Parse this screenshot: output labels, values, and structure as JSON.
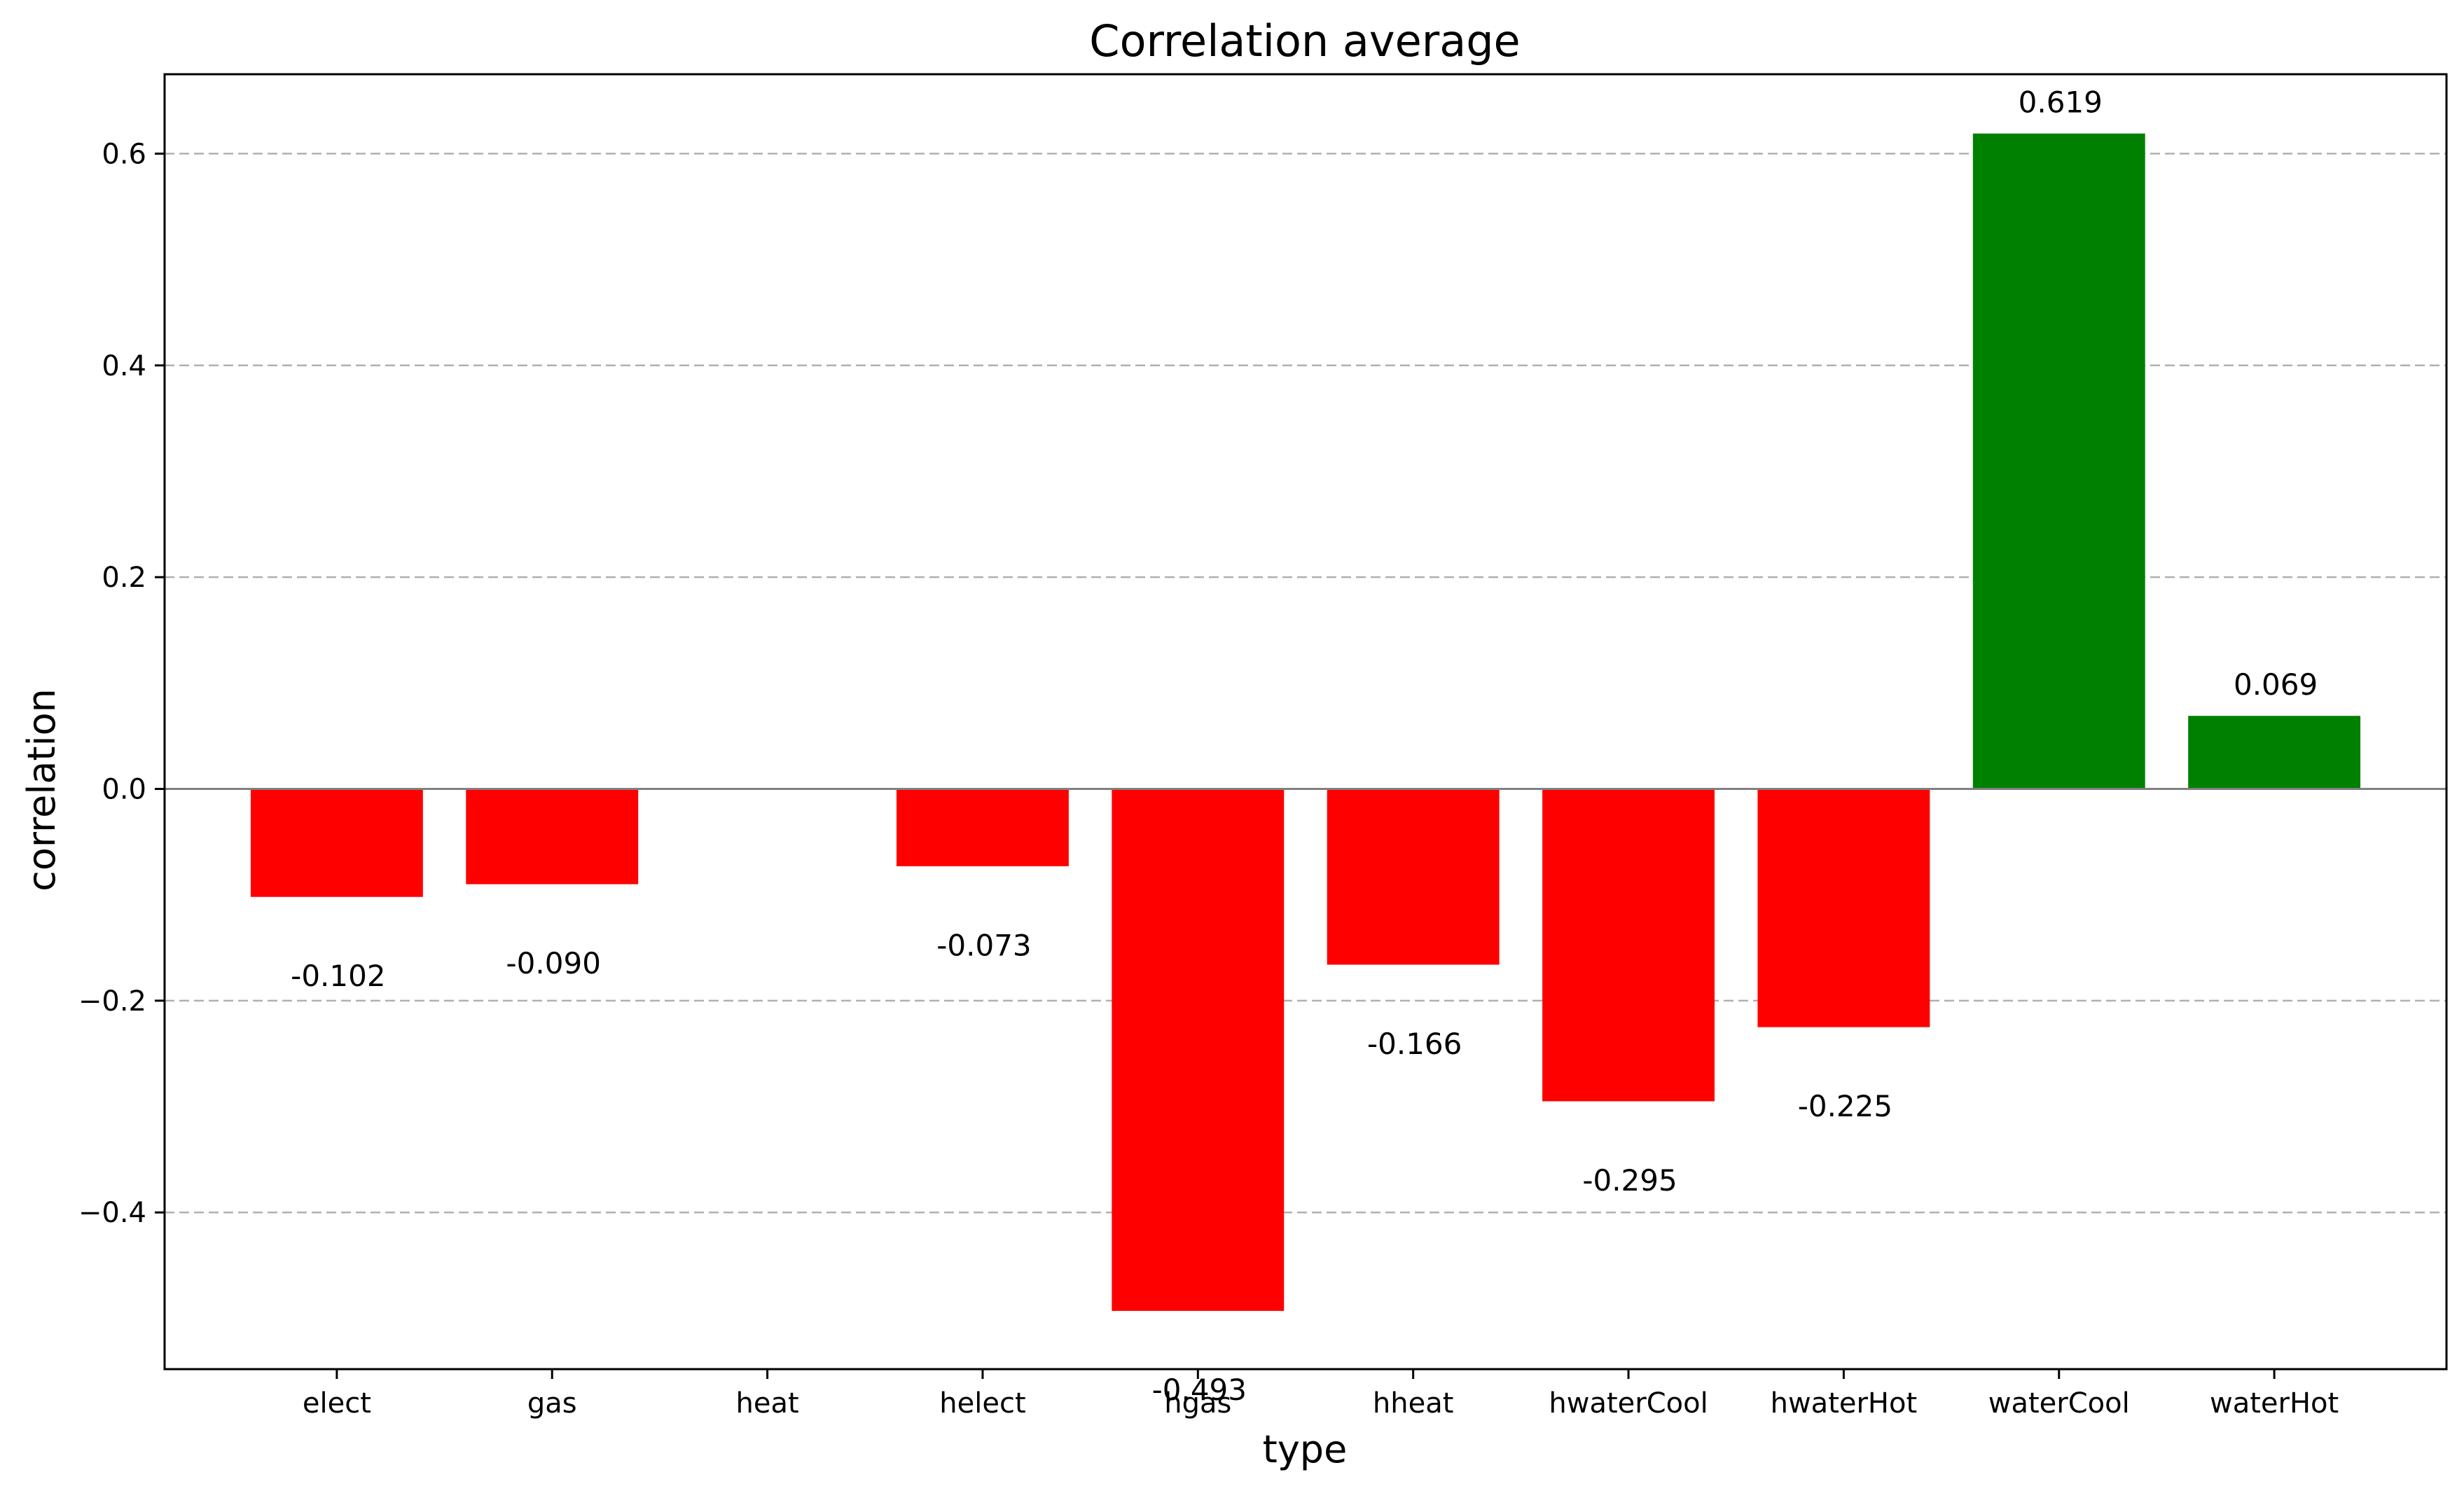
{
  "chart_data": {
    "type": "bar",
    "title": "Correlation average",
    "xlabel": "type",
    "ylabel": "correlation",
    "categories": [
      "elect",
      "gas",
      "heat",
      "helect",
      "hgas",
      "hheat",
      "hwaterCool",
      "hwaterHot",
      "waterCool",
      "waterHot"
    ],
    "values": [
      -0.102,
      -0.09,
      0.0,
      -0.073,
      -0.493,
      -0.166,
      -0.295,
      -0.225,
      0.619,
      0.069
    ],
    "data_labels": [
      "-0.102",
      "-0.090",
      "",
      "-0.073",
      "-0.493",
      "-0.166",
      "-0.295",
      "-0.225",
      "0.619",
      "0.069"
    ],
    "ylim": [
      -0.548,
      0.675
    ],
    "yticks": [
      -0.4,
      -0.2,
      0.0,
      0.2,
      0.4,
      0.6
    ],
    "ytick_labels": [
      "−0.4",
      "−0.2",
      "0.0",
      "0.2",
      "0.4",
      "0.6"
    ],
    "grid": "y-dashed",
    "colors": {
      "positive": "#008000",
      "negative": "#ff0000",
      "grid": "#b0b0b0",
      "zero_line": "#808080"
    }
  }
}
